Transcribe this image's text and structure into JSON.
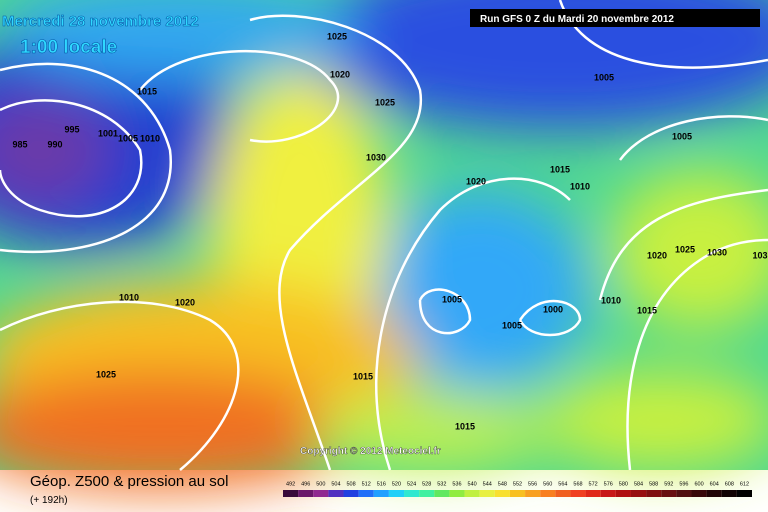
{
  "header": {
    "date": "Mercredi 28 novembre 2012",
    "time": "1:00 locale",
    "run": "Run GFS 0 Z du Mardi 20 novembre 2012"
  },
  "isobars": [
    985,
    990,
    995,
    1001,
    1005,
    1010,
    1015,
    1025,
    1020,
    1025,
    1030,
    1020,
    1015,
    1010,
    1005,
    1005,
    1025,
    1030,
    1020,
    103,
    1010,
    1020,
    1025,
    1015,
    1005,
    1005,
    1000,
    1010,
    1015,
    1015
  ],
  "copyright": "Copyright © 2012 Meteociel.fr",
  "legend": {
    "title": "Géop. Z500 & pression au sol",
    "lead": "(+ 192h)",
    "scale": [
      492,
      496,
      500,
      504,
      508,
      512,
      516,
      520,
      524,
      528,
      532,
      536,
      540,
      544,
      548,
      552,
      556,
      560,
      564,
      568,
      572,
      576,
      580,
      584,
      588,
      592,
      596,
      600,
      604,
      608,
      612
    ]
  }
}
